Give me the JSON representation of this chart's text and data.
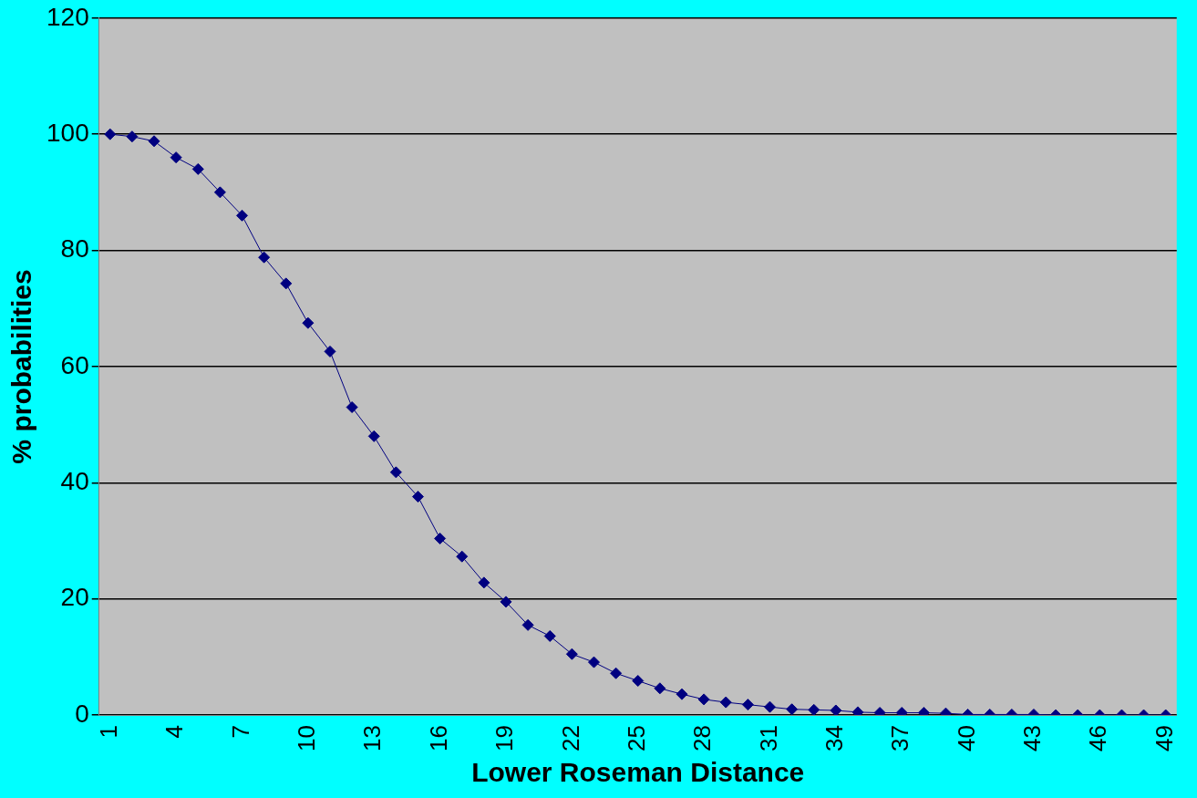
{
  "chart_data": {
    "type": "line",
    "xlabel": "Lower Roseman Distance",
    "ylabel": "% probabilities",
    "categories": [
      "1",
      null,
      null,
      "4",
      null,
      null,
      "7",
      null,
      null,
      "10",
      null,
      null,
      "13",
      null,
      null,
      "16",
      null,
      null,
      "19",
      null,
      null,
      "22",
      null,
      null,
      "25",
      null,
      null,
      "28",
      null,
      null,
      "31",
      null,
      null,
      "34",
      null,
      null,
      "37",
      null,
      null,
      "40",
      null,
      null,
      "43",
      null,
      null,
      "46",
      null,
      null,
      "49"
    ],
    "series": [
      {
        "color": "#000080",
        "values": [
          100,
          99.6,
          98.8,
          96,
          94,
          90,
          86,
          78.8,
          74.3,
          67.5,
          62.6,
          53,
          48,
          41.8,
          37.6,
          30.4,
          27.3,
          22.8,
          19.5,
          15.5,
          13.6,
          10.5,
          9.1,
          7.2,
          5.9,
          4.6,
          3.6,
          2.7,
          2.2,
          1.8,
          1.4,
          1.0,
          0.9,
          0.8,
          0.5,
          0.4,
          0.4,
          0.4,
          0.3,
          0.1,
          0.1,
          0.1,
          0.1,
          0,
          0,
          0,
          0,
          0,
          0
        ]
      }
    ],
    "ylim": [
      0,
      120
    ],
    "yticks": [
      0,
      20,
      40,
      60,
      80,
      100,
      120
    ],
    "grid": "y",
    "legend": false,
    "marker": "diamond",
    "line_style": "solid"
  }
}
